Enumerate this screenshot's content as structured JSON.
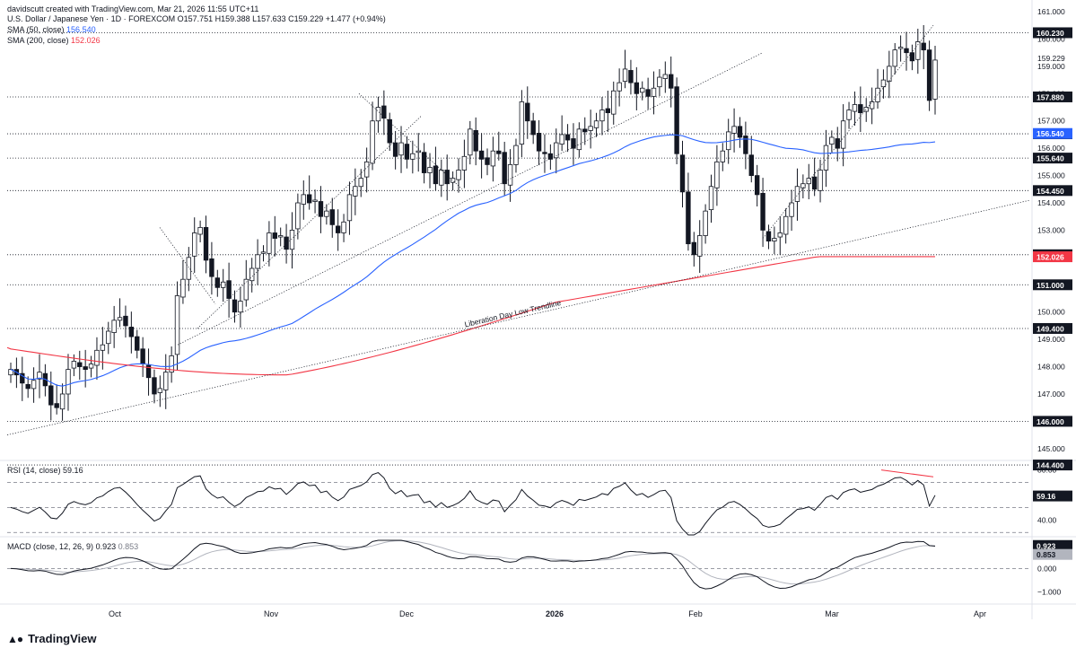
{
  "header": {
    "title_line": "U.S. Dollar / Japanese Yen · 1D · FOREXCOM  O157.751  H159.388  L157.633  C159.229  +1.477 (+0.94%)",
    "creator": "davidscutt created with TradingView.com, Mar 21, 2026 11:55 UTC+11",
    "sma50_label": "SMA (50, close)",
    "sma50_value": "156.540",
    "sma200_label": "SMA (200, close)",
    "sma200_value": "152.026"
  },
  "chart_data": {
    "type": "candlestick",
    "symbol": "U.S. Dollar / Japanese Yen",
    "interval": "1D",
    "exchange": "FOREXCOM",
    "ohlc_last": {
      "open": 157.751,
      "high": 159.388,
      "low": 157.633,
      "close": 159.229,
      "change": "+1.477 (+0.94%)"
    },
    "x_labels": [
      "Oct",
      "Nov",
      "Dec",
      "2026",
      "Feb",
      "Mar",
      "Apr"
    ],
    "y_ticks": [
      "161.000",
      "160.000",
      "159.000",
      "158.000",
      "157.000",
      "156.000",
      "155.000",
      "154.000",
      "153.000",
      "152.000",
      "151.000",
      "150.000",
      "149.000",
      "148.000",
      "147.000",
      "146.000",
      "145.000"
    ],
    "ylim": [
      144.6,
      161.1
    ],
    "horizontal_levels": [
      {
        "value": 160.23,
        "label": "160.230"
      },
      {
        "value": 157.88,
        "label": "157.880"
      },
      {
        "value": 156.53,
        "label": "156.530"
      },
      {
        "value": 155.64,
        "label": "155.640"
      },
      {
        "value": 154.45,
        "label": "154.450"
      },
      {
        "value": 152.1,
        "label": "152.100"
      },
      {
        "value": 151.0,
        "label": "151.000"
      },
      {
        "value": 149.4,
        "label": "149.400"
      },
      {
        "value": 146.0,
        "label": "146.000"
      },
      {
        "value": 144.4,
        "label": "144.400"
      }
    ],
    "last_price_label": "159.229",
    "sma50_tag": "156.540",
    "sma200_tag": "152.026",
    "annotation": "Liberation Day Low Trendline",
    "closes": [
      147.9,
      147.7,
      147.4,
      147.2,
      147.5,
      147.8,
      147.3,
      146.6,
      146.5,
      147.0,
      147.9,
      148.2,
      148.0,
      147.9,
      148.1,
      148.6,
      148.8,
      149.3,
      149.7,
      149.8,
      149.5,
      149.1,
      148.6,
      148.1,
      147.6,
      147.0,
      147.2,
      147.8,
      148.4,
      150.6,
      151.2,
      152.0,
      152.9,
      153.1,
      151.9,
      151.3,
      150.9,
      151.1,
      150.5,
      150.0,
      150.4,
      151.2,
      151.6,
      152.1,
      152.2,
      152.9,
      152.7,
      152.8,
      152.3,
      153.0,
      154.0,
      154.3,
      154.0,
      154.1,
      153.5,
      153.7,
      153.2,
      152.9,
      153.3,
      154.3,
      154.6,
      154.9,
      155.5,
      157.0,
      157.5,
      157.1,
      156.2,
      155.7,
      156.2,
      155.6,
      155.8,
      155.9,
      155.1,
      155.3,
      154.7,
      155.2,
      154.7,
      154.9,
      155.2,
      155.7,
      156.7,
      155.9,
      155.6,
      155.4,
      155.9,
      155.8,
      154.7,
      155.4,
      156.1,
      157.7,
      157.0,
      156.5,
      155.9,
      155.8,
      155.6,
      156.2,
      156.5,
      156.3,
      156.0,
      156.7,
      156.6,
      156.8,
      157.0,
      157.4,
      157.3,
      158.1,
      158.4,
      158.9,
      158.4,
      158.0,
      158.2,
      157.9,
      158.2,
      158.6,
      158.7,
      158.2,
      155.8,
      154.4,
      152.5,
      152.1,
      152.8,
      153.7,
      154.6,
      155.5,
      155.9,
      156.6,
      156.8,
      156.4,
      155.8,
      155.0,
      154.3,
      153.0,
      152.6,
      152.7,
      152.9,
      153.5,
      154.0,
      154.6,
      154.7,
      154.9,
      154.5,
      155.2,
      156.1,
      156.4,
      156.0,
      157.0,
      157.4,
      157.6,
      157.3,
      157.5,
      157.7,
      158.2,
      158.5,
      159.0,
      159.6,
      159.7,
      159.5,
      159.2,
      159.9,
      159.6,
      157.75,
      159.229
    ],
    "rsi": {
      "label": "RSI (14, close)",
      "value": "59.16",
      "ticks": [
        "80.00",
        "40.00"
      ],
      "ylim": [
        28,
        84
      ],
      "upper": 70,
      "mid": 50,
      "lower": 30
    },
    "macd": {
      "label": "MACD (close, 12, 26, 9)",
      "macd_value": "0.923",
      "signal_value": "0.853",
      "ticks": [
        "1.000",
        "0.000",
        "−1.000"
      ],
      "ylim": [
        -1.4,
        1.2
      ]
    }
  },
  "logo": {
    "mark": "TV",
    "name": "TradingView"
  }
}
